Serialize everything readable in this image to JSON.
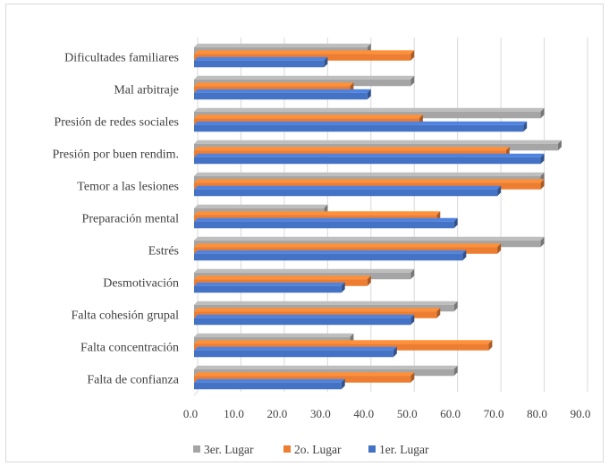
{
  "chart_data": {
    "type": "bar",
    "orientation": "horizontal",
    "bar_style": "3d",
    "categories": [
      "Dificultades familiares",
      "Mal arbitraje",
      "Presión de redes sociales",
      "Presión por buen rendim.",
      "Temor a las lesiones",
      "Preparación mental",
      "Estrés",
      "Desmotivación",
      "Falta cohesión grupal",
      "Falta concentración",
      "Falta de confianza"
    ],
    "series": [
      {
        "name": "3er. Lugar",
        "color": "#a5a5a5",
        "values": [
          40,
          50,
          80,
          84,
          80,
          30,
          80,
          50,
          60,
          36,
          60
        ]
      },
      {
        "name": "2o. Lugar",
        "color": "#ed7d31",
        "values": [
          50,
          36,
          52,
          72,
          80,
          56,
          70,
          40,
          56,
          68,
          50
        ]
      },
      {
        "name": "1er. Lugar",
        "color": "#4472c4",
        "values": [
          30,
          40,
          76,
          80,
          70,
          60,
          62,
          34,
          50,
          46,
          34
        ]
      }
    ],
    "x_ticks": [
      "0.0",
      "10.0",
      "20.0",
      "30.0",
      "40.0",
      "50.0",
      "60.0",
      "70.0",
      "80.0",
      "90.0"
    ],
    "xlim": [
      0,
      90
    ],
    "grid": "vertical",
    "legend_position": "bottom",
    "title": "",
    "xlabel": "",
    "ylabel": ""
  }
}
